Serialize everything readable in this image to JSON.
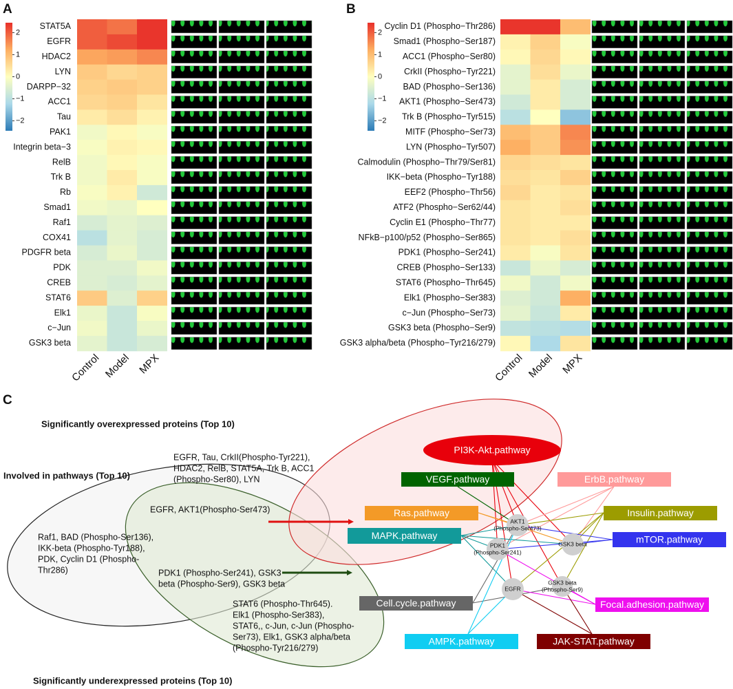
{
  "panel_labels": [
    "A",
    "B",
    "C"
  ],
  "chart_data": [
    {
      "type": "heatmap",
      "columns": [
        "Control",
        "Model",
        "MPX"
      ],
      "rows": [
        "STAT5A",
        "EGFR",
        "HDAC2",
        "LYN",
        "DARPP−32",
        "ACC1",
        "Tau",
        "PAK1",
        "Integrin beta−3",
        "RelB",
        "Trk B",
        "Rb",
        "Smad1",
        "Raf1",
        "COX41",
        "PDGFR beta",
        "PDK",
        "CREB",
        "STAT6",
        "Elk1",
        "c−Jun",
        "GSK3 beta"
      ],
      "values": [
        [
          2.0,
          1.8,
          2.4
        ],
        [
          2.0,
          2.2,
          2.4
        ],
        [
          1.3,
          1.4,
          1.6
        ],
        [
          0.8,
          0.6,
          0.7
        ],
        [
          0.7,
          0.8,
          0.7
        ],
        [
          0.6,
          0.7,
          0.4
        ],
        [
          0.3,
          0.5,
          0.2
        ],
        [
          -0.2,
          0.1,
          -0.1
        ],
        [
          -0.1,
          0.2,
          0.1
        ],
        [
          -0.2,
          0.1,
          -0.1
        ],
        [
          -0.2,
          0.3,
          -0.1
        ],
        [
          -0.1,
          0.2,
          -0.7
        ],
        [
          -0.2,
          -0.3,
          0.0
        ],
        [
          -0.6,
          -0.4,
          -0.5
        ],
        [
          -1.0,
          -0.4,
          -0.6
        ],
        [
          -0.6,
          -0.3,
          -0.6
        ],
        [
          -0.5,
          -0.5,
          -0.2
        ],
        [
          -0.5,
          -0.6,
          -0.4
        ],
        [
          0.8,
          -0.5,
          0.7
        ],
        [
          -0.3,
          -0.8,
          -0.1
        ],
        [
          -0.2,
          -0.8,
          -0.3
        ],
        [
          -0.4,
          -0.8,
          -0.6
        ]
      ],
      "zlim": [
        -2.45,
        2.45
      ],
      "zticks": [
        2,
        1,
        0,
        {
          "value": -1,
          "label": "−1"
        },
        {
          "value": -2,
          "label": "−2"
        }
      ],
      "colorscale": [
        "#2c7bb6",
        "#abd9e9",
        "#ffffbf",
        "#fdae61",
        "#e8302a"
      ]
    },
    {
      "type": "heatmap",
      "columns": [
        "Control",
        "Model",
        "MPX"
      ],
      "rows": [
        "Cyclin D1 (Phospho−Thr286)",
        "Smad1 (Phospho−Ser187)",
        "ACC1 (Phospho−Ser80)",
        "CrkII (Phospho−Tyr221)",
        "BAD (Phospho−Ser136)",
        "AKT1 (Phospho−Ser473)",
        "Trk B (Phospho−Tyr515)",
        "MITF (Phospho−Ser73)",
        "LYN (Phospho−Tyr507)",
        "Calmodulin (Phospho−Thr79/Ser81)",
        "IKK−beta (Phospho−Tyr188)",
        "EEF2 (Phospho−Thr56)",
        "ATF2 (Phospho−Ser62/44)",
        "Cyclin E1 (Phospho−Thr77)",
        "NFkB−p100/p52 (Phospho−Ser865)",
        "PDK1 (Phospho−Ser241)",
        "CREB (Phospho−Ser133)",
        "STAT6 (Phospho−Thr645)",
        "Elk1 (Phospho−Ser383)",
        "c−Jun (Phospho−Ser73)",
        "GSK3 beta (Phospho−Ser9)",
        "GSK3 alpha/beta (Phospho−Tyr216/279)"
      ],
      "values": [
        [
          2.4,
          2.4,
          1.0
        ],
        [
          0.2,
          0.7,
          -0.1
        ],
        [
          0.1,
          0.6,
          0.1
        ],
        [
          -0.4,
          0.5,
          -0.3
        ],
        [
          -0.4,
          0.3,
          -0.6
        ],
        [
          -0.7,
          0.3,
          -0.6
        ],
        [
          -1.0,
          0.0,
          -1.5
        ],
        [
          1.0,
          0.8,
          1.6
        ],
        [
          1.2,
          0.8,
          1.5
        ],
        [
          0.6,
          0.5,
          0.4
        ],
        [
          0.5,
          0.4,
          0.7
        ],
        [
          0.6,
          0.3,
          0.4
        ],
        [
          0.4,
          0.3,
          0.5
        ],
        [
          0.4,
          0.3,
          0.3
        ],
        [
          0.4,
          0.3,
          0.5
        ],
        [
          0.3,
          -0.1,
          0.4
        ],
        [
          -0.8,
          -0.3,
          -0.6
        ],
        [
          -0.2,
          -0.7,
          -0.2
        ],
        [
          -0.5,
          -0.7,
          1.2
        ],
        [
          -0.4,
          -0.8,
          0.3
        ],
        [
          -0.9,
          -1.0,
          -1.1
        ],
        [
          0.1,
          -1.2,
          0.4
        ]
      ],
      "zlim": [
        -2.45,
        2.45
      ],
      "zticks": [
        2,
        1,
        0,
        {
          "value": -1,
          "label": "−1"
        },
        {
          "value": -2,
          "label": "−2"
        }
      ],
      "colorscale": [
        "#2c7bb6",
        "#abd9e9",
        "#ffffbf",
        "#fdae61",
        "#e8302a"
      ]
    }
  ],
  "venn": {
    "over_title": "Significantly overexpressed proteins (Top 10)",
    "over_text": [
      "EGFR, Tau, CrkII(Phospho-Tyr221),",
      "HDAC2, RelB, STAT5A, Trk B, ACC1",
      "(Phospho-Ser80), LYN"
    ],
    "pathway_title": "Involved in pathways (Top 10)",
    "over_pathway_text": [
      "EGFR, AKT1(Phospho-Ser473)"
    ],
    "pathway_text": [
      "Raf1, BAD (Phospho-Ser136),",
      "IKK-beta (Phospho-Tyr188),",
      "PDK, Cyclin D1 (Phospho-",
      "Thr286)"
    ],
    "under_pathway_text": [
      "PDK1 (Phospho-Ser241), GSK3",
      "beta (Phospho-Ser9), GSK3 beta"
    ],
    "under_text": [
      "STAT6 (Phospho-Thr645).",
      "Elk1 (Phospho-Ser383),",
      "STAT6,, c-Jun, c-Jun (Phospho-",
      "Ser73), Elk1, GSK3 alpha/beta",
      "(Phospho-Tyr216/279)"
    ],
    "under_title": "Significantly underexpressed proteins (Top 10)"
  },
  "network": {
    "pathways": [
      {
        "name": "PI3K-Akt.pathway",
        "color": "#e8000b"
      },
      {
        "name": "VEGF.pathway",
        "color": "#006400"
      },
      {
        "name": "ErbB.pathway",
        "color": "#ff9a9a"
      },
      {
        "name": "Ras.pathway",
        "color": "#f39a27"
      },
      {
        "name": "Insulin.pathway",
        "color": "#9c9c00"
      },
      {
        "name": "MAPK.pathway",
        "color": "#129a9a"
      },
      {
        "name": "mTOR.pathway",
        "color": "#3434ee"
      },
      {
        "name": "Cell.cycle.pathway",
        "color": "#666666"
      },
      {
        "name": "Focal.adhesion.pathway",
        "color": "#ee10ee"
      },
      {
        "name": "AMPK.pathway",
        "color": "#10cdf2"
      },
      {
        "name": "JAK-STAT.pathway",
        "color": "#7f0000"
      }
    ],
    "nodes": [
      [
        "AKT1",
        "(Phospho-Ser473)"
      ],
      [
        "PDK1",
        "(Phospho-Ser241)"
      ],
      [
        "GSK3 beta"
      ],
      [
        "EGFR"
      ],
      [
        "GSK3 beta",
        "(Phospho-Ser9)"
      ]
    ]
  }
}
